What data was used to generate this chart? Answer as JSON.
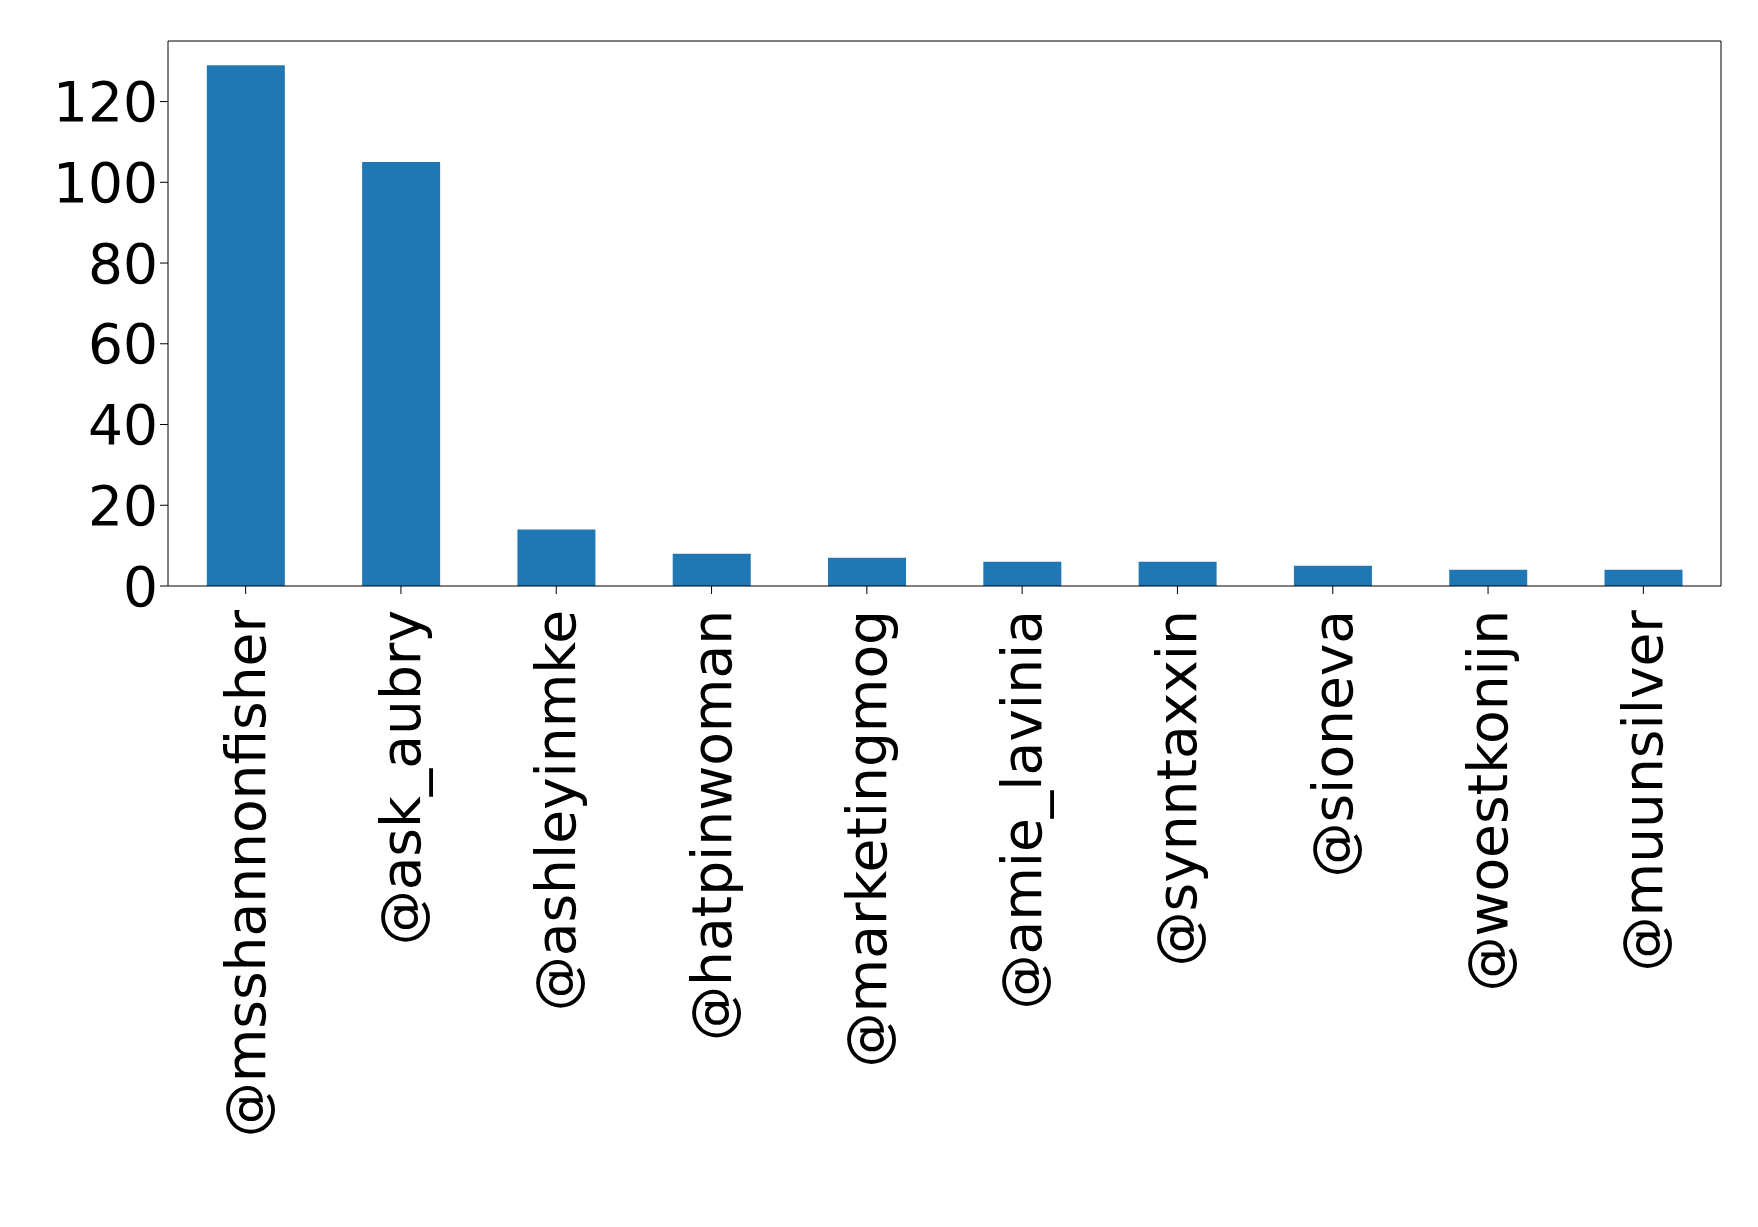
{
  "chart_data": {
    "type": "bar",
    "categories": [
      "@msshannonfisher",
      "@ask_aubry",
      "@ashleyinmke",
      "@hatpinwoman",
      "@marketingmog",
      "@amie_lavinia",
      "@synntaxxin",
      "@sioneva",
      "@woestkonijn",
      "@muunsilver"
    ],
    "values": [
      129,
      105,
      14,
      8,
      7,
      6,
      6,
      5,
      4,
      4
    ],
    "color": "#1f77b4",
    "ylim": [
      0,
      135
    ],
    "yticks": [
      0,
      20,
      40,
      60,
      80,
      100,
      120
    ],
    "grid": false
  }
}
